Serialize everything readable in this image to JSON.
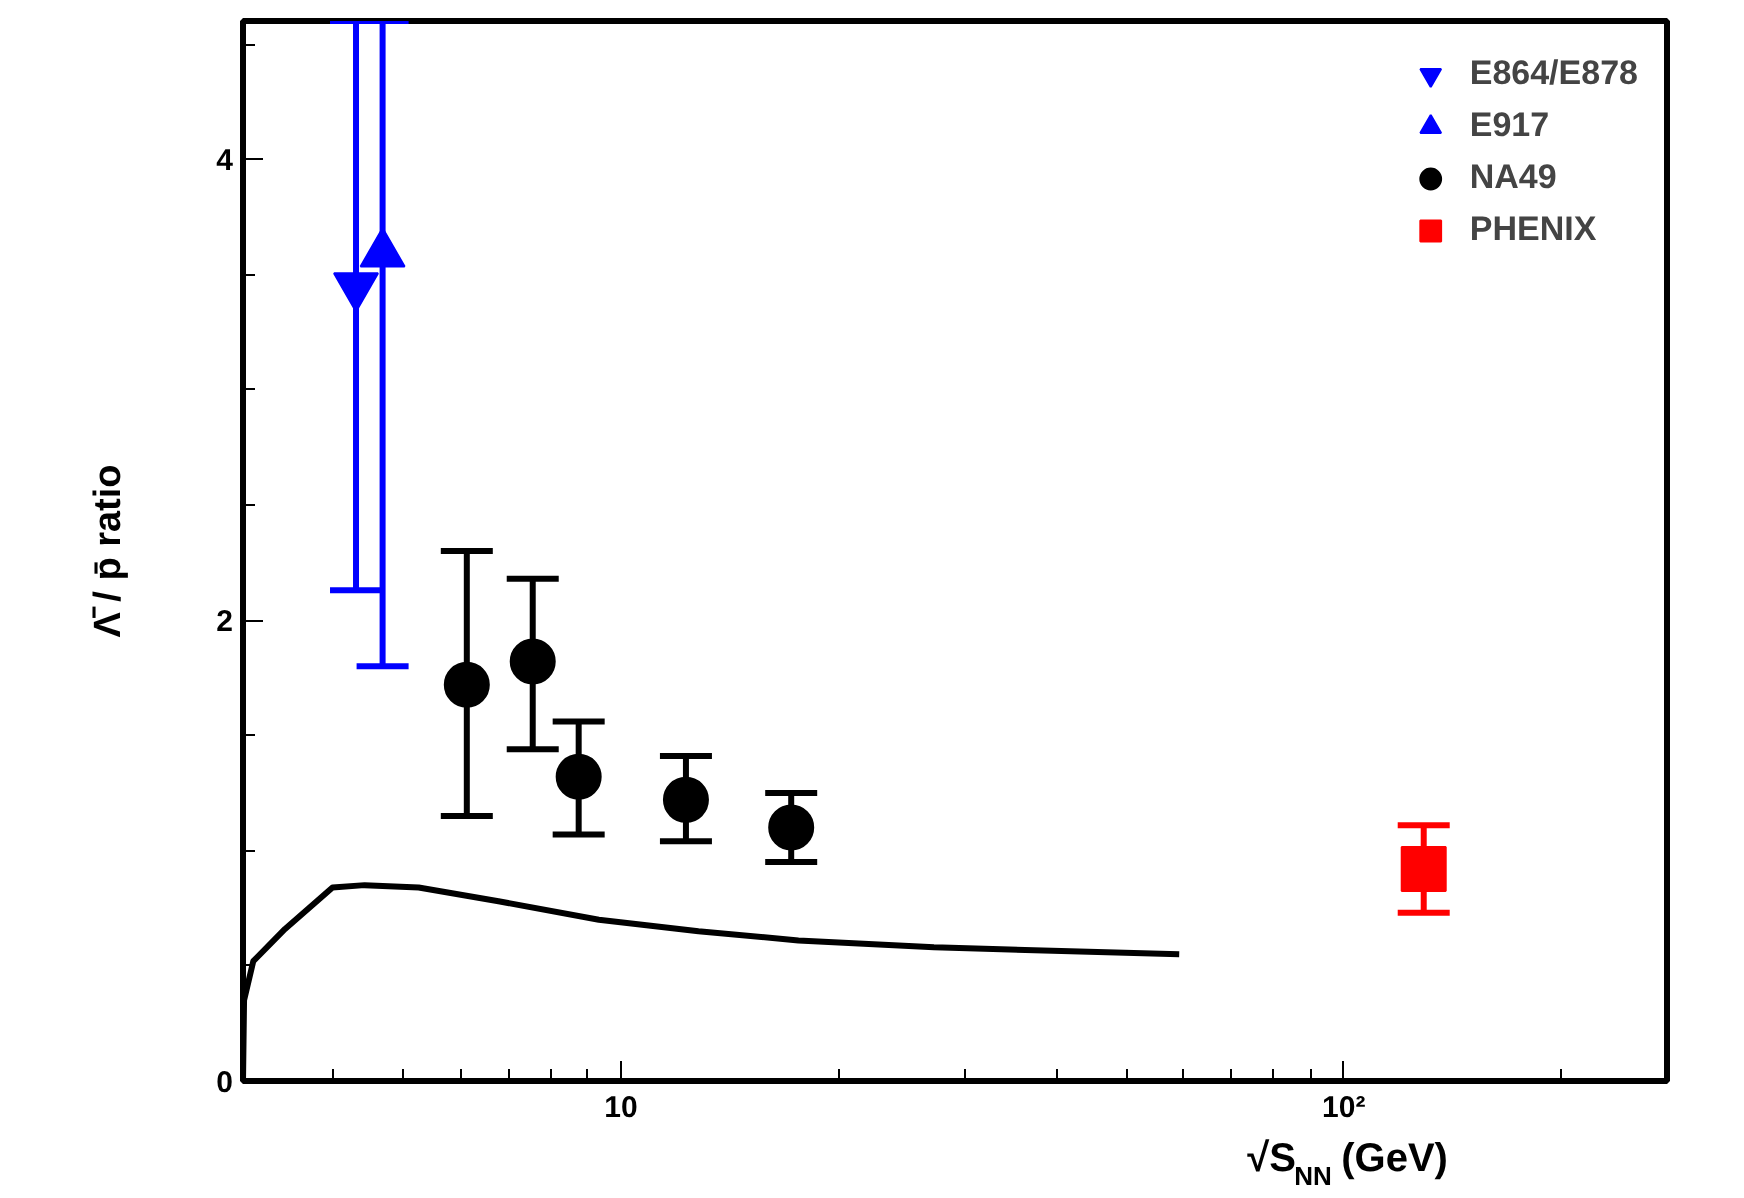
{
  "chart_data": {
    "type": "scatter",
    "xlabel": "√S$_{NN}$ (GeV)",
    "ylabel": "Λ̄ / p̄ ratio",
    "log": "x",
    "xlim": [
      3,
      280
    ],
    "xticks": [
      {
        "value": 3,
        "label": null
      },
      {
        "value": 4,
        "label": null
      },
      {
        "value": 5,
        "label": null
      },
      {
        "value": 6,
        "label": null
      },
      {
        "value": 7,
        "label": null
      },
      {
        "value": 8,
        "label": null
      },
      {
        "value": 9,
        "label": null
      },
      10,
      {
        "value": 20,
        "label": null
      },
      {
        "value": 30,
        "label": null
      },
      {
        "value": 40,
        "label": null
      },
      {
        "value": 50,
        "label": null
      },
      {
        "value": 60,
        "label": null
      },
      {
        "value": 70,
        "label": null
      },
      {
        "value": 80,
        "label": null
      },
      {
        "value": 90,
        "label": null
      },
      {
        "value": 100,
        "label": "10²"
      },
      {
        "value": 200,
        "label": null
      }
    ],
    "ylim": [
      0,
      4.6
    ],
    "yticks": [
      0,
      {
        "value": 0.5,
        "label": null
      },
      {
        "value": 1,
        "label": null
      },
      {
        "value": 1.5,
        "label": null
      },
      2,
      {
        "value": 2.5,
        "label": null
      },
      {
        "value": 3,
        "label": null
      },
      {
        "value": 3.5,
        "label": null
      },
      4,
      {
        "value": 4.5,
        "label": null
      }
    ],
    "grid": false,
    "legend": "top right",
    "series": [
      {
        "name": "E864/E878",
        "color": "#0000ff",
        "x": [
          4.3
        ],
        "values": [
          3.45
        ],
        "errors": [
          [
            2.13,
            4.6
          ]
        ]
      },
      {
        "name": "E917",
        "color": "#0000ff",
        "marker": "triangle",
        "x": [
          4.68
        ],
        "values": [
          3.59
        ],
        "errors": [
          [
            1.8,
            4.6
          ]
        ]
      },
      {
        "name": "NA49",
        "color": "#000000",
        "marker": "circle",
        "x": [
          6.12,
          7.55,
          8.74,
          12.3,
          17.2
        ],
        "values": [
          1.72,
          1.82,
          1.32,
          1.22,
          1.1
        ],
        "errors": [
          [
            1.15,
            2.3
          ],
          [
            1.44,
            2.18
          ],
          [
            1.07,
            1.56
          ],
          [
            1.04,
            1.41
          ],
          [
            0.95,
            1.25
          ]
        ]
      },
      {
        "name": "PHENIX",
        "color": "#ff0000",
        "marker": "square",
        "x": [
          129
        ],
        "values": [
          0.92
        ],
        "errors": [
          [
            0.73,
            1.11
          ]
        ]
      },
      {
        "type": "line",
        "color": "#000000",
        "x": [
          3.0,
          3.01,
          3.1,
          3.43,
          3.99,
          4.42,
          5.25,
          6.77,
          9.32,
          12.8,
          17.6,
          27.1,
          59.2
        ],
        "values": [
          0.0,
          0.35,
          0.52,
          0.66,
          0.84,
          0.85,
          0.84,
          0.78,
          0.7,
          0.65,
          0.61,
          0.58,
          0.55
        ]
      }
    ]
  }
}
